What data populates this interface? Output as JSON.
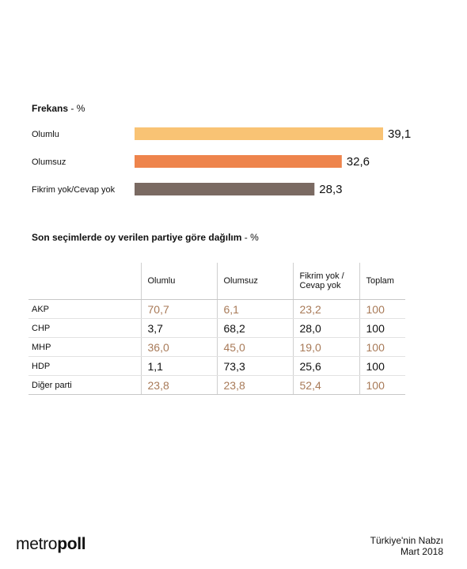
{
  "chart_data": [
    {
      "type": "bar",
      "orientation": "horizontal",
      "title": "Frekans",
      "title_suffix": " - %",
      "categories": [
        "Olumlu",
        "Olumsuz",
        "Fikrim yok/Cevap yok"
      ],
      "values": [
        39.1,
        32.6,
        28.3
      ],
      "value_labels": [
        "39,1",
        "32,6",
        "28,3"
      ],
      "colors": [
        "#F9C374",
        "#EE844C",
        "#7A6A62"
      ],
      "xlim": [
        0,
        39.1
      ]
    },
    {
      "type": "table",
      "title": "Son seçimlerde oy verilen partiye göre dağılım",
      "title_suffix": " - %",
      "columns": [
        "Olumlu",
        "Olumsuz",
        "Fikrim yok / Cevap yok",
        "Toplam"
      ],
      "rows": [
        {
          "label": "AKP",
          "values": [
            "70,7",
            "6,1",
            "23,2",
            "100"
          ]
        },
        {
          "label": "CHP",
          "values": [
            "3,7",
            "68,2",
            "28,0",
            "100"
          ]
        },
        {
          "label": "MHP",
          "values": [
            "36,0",
            "45,0",
            "19,0",
            "100"
          ]
        },
        {
          "label": "HDP",
          "values": [
            "1,1",
            "73,3",
            "25,6",
            "100"
          ]
        },
        {
          "label": "Diğer parti",
          "values": [
            "23,8",
            "23,8",
            "52,4",
            "100"
          ]
        }
      ]
    }
  ],
  "footer": {
    "logo_light": "metro",
    "logo_bold": "poll",
    "line1": "Türkiye'nin Nabzı",
    "line2": "Mart 2018"
  }
}
